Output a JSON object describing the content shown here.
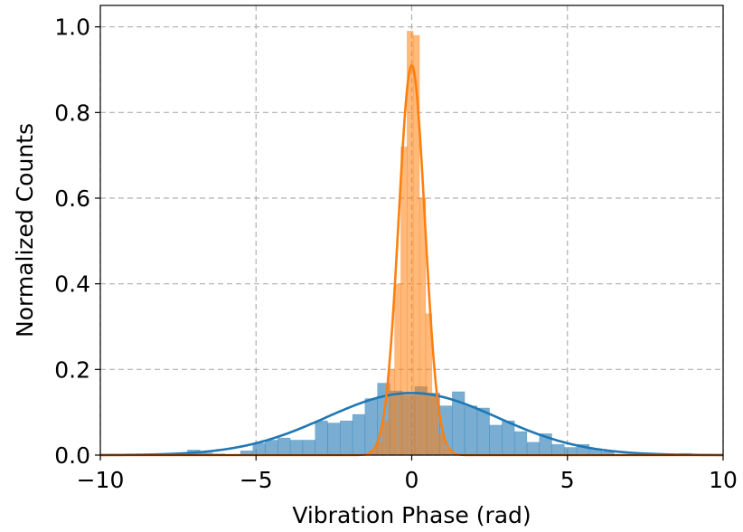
{
  "chart_data": {
    "type": "bar",
    "title": "",
    "xlabel": "Vibration Phase (rad)",
    "ylabel": "Normalized Counts",
    "xlim": [
      -10,
      10
    ],
    "ylim": [
      0,
      1.05
    ],
    "xticks": [
      -10,
      -5,
      0,
      5,
      10
    ],
    "xtick_labels": [
      "−10",
      "−5",
      "0",
      "5",
      "10"
    ],
    "yticks": [
      0.0,
      0.2,
      0.4,
      0.6,
      0.8,
      1.0
    ],
    "ytick_labels": [
      "0.0",
      "0.2",
      "0.4",
      "0.6",
      "0.8",
      "1.0"
    ],
    "grid": true,
    "series": [
      {
        "kind": "histogram",
        "color": "#1f77b4",
        "opacity": 0.6,
        "bins": [
          {
            "x0": -7.2,
            "x1": -6.8,
            "y": 0.012
          },
          {
            "x0": -6.8,
            "x1": -6.4,
            "y": 0.005
          },
          {
            "x0": -6.4,
            "x1": -6.0,
            "y": 0.003
          },
          {
            "x0": -5.5,
            "x1": -5.1,
            "y": 0.01
          },
          {
            "x0": -5.1,
            "x1": -4.7,
            "y": 0.028
          },
          {
            "x0": -4.7,
            "x1": -4.3,
            "y": 0.035
          },
          {
            "x0": -4.3,
            "x1": -3.9,
            "y": 0.04
          },
          {
            "x0": -3.9,
            "x1": -3.5,
            "y": 0.035
          },
          {
            "x0": -3.5,
            "x1": -3.1,
            "y": 0.035
          },
          {
            "x0": -3.1,
            "x1": -2.7,
            "y": 0.08
          },
          {
            "x0": -2.7,
            "x1": -2.3,
            "y": 0.075
          },
          {
            "x0": -2.3,
            "x1": -1.9,
            "y": 0.08
          },
          {
            "x0": -1.9,
            "x1": -1.5,
            "y": 0.095
          },
          {
            "x0": -1.5,
            "x1": -1.1,
            "y": 0.132
          },
          {
            "x0": -1.1,
            "x1": -0.7,
            "y": 0.168
          },
          {
            "x0": -0.7,
            "x1": -0.3,
            "y": 0.15
          },
          {
            "x0": -0.3,
            "x1": 0.1,
            "y": 0.14
          },
          {
            "x0": 0.1,
            "x1": 0.5,
            "y": 0.16
          },
          {
            "x0": 0.5,
            "x1": 0.9,
            "y": 0.145
          },
          {
            "x0": 0.9,
            "x1": 1.3,
            "y": 0.115
          },
          {
            "x0": 1.3,
            "x1": 1.7,
            "y": 0.148
          },
          {
            "x0": 1.7,
            "x1": 2.1,
            "y": 0.115
          },
          {
            "x0": 2.1,
            "x1": 2.5,
            "y": 0.11
          },
          {
            "x0": 2.5,
            "x1": 2.9,
            "y": 0.07
          },
          {
            "x0": 2.9,
            "x1": 3.3,
            "y": 0.08
          },
          {
            "x0": 3.3,
            "x1": 3.7,
            "y": 0.055
          },
          {
            "x0": 3.7,
            "x1": 4.1,
            "y": 0.03
          },
          {
            "x0": 4.1,
            "x1": 4.5,
            "y": 0.05
          },
          {
            "x0": 4.5,
            "x1": 4.9,
            "y": 0.025
          },
          {
            "x0": 4.9,
            "x1": 5.3,
            "y": 0.018
          },
          {
            "x0": 5.3,
            "x1": 5.7,
            "y": 0.025
          },
          {
            "x0": 5.7,
            "x1": 6.1,
            "y": 0.015
          },
          {
            "x0": 6.1,
            "x1": 6.5,
            "y": 0.008
          },
          {
            "x0": 7.4,
            "x1": 7.8,
            "y": 0.005
          },
          {
            "x0": 8.6,
            "x1": 9.0,
            "y": 0.004
          }
        ]
      },
      {
        "kind": "histogram",
        "color": "#ff7f0e",
        "opacity": 0.55,
        "bins": [
          {
            "x0": -1.35,
            "x1": -1.15,
            "y": 0.01
          },
          {
            "x0": -1.15,
            "x1": -0.95,
            "y": 0.03
          },
          {
            "x0": -0.95,
            "x1": -0.75,
            "y": 0.08
          },
          {
            "x0": -0.75,
            "x1": -0.55,
            "y": 0.2
          },
          {
            "x0": -0.55,
            "x1": -0.35,
            "y": 0.4
          },
          {
            "x0": -0.35,
            "x1": -0.15,
            "y": 0.72
          },
          {
            "x0": -0.15,
            "x1": 0.05,
            "y": 0.99
          },
          {
            "x0": 0.05,
            "x1": 0.25,
            "y": 0.98
          },
          {
            "x0": 0.25,
            "x1": 0.45,
            "y": 0.6
          },
          {
            "x0": 0.45,
            "x1": 0.65,
            "y": 0.33
          },
          {
            "x0": 0.65,
            "x1": 0.85,
            "y": 0.14
          },
          {
            "x0": 0.85,
            "x1": 1.05,
            "y": 0.05
          },
          {
            "x0": 1.05,
            "x1": 1.25,
            "y": 0.015
          }
        ]
      },
      {
        "kind": "curve",
        "color": "#1f77b4",
        "fit": "gaussian",
        "amplitude": 0.145,
        "mean": 0.0,
        "sigma": 2.75
      },
      {
        "kind": "curve",
        "color": "#ff7f0e",
        "fit": "gaussian",
        "amplitude": 0.91,
        "mean": 0.0,
        "sigma": 0.42
      }
    ]
  }
}
